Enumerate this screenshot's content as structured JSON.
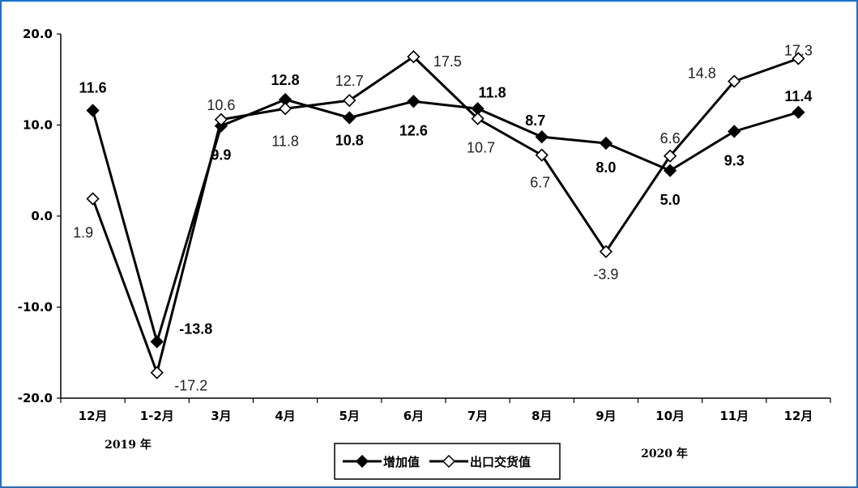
{
  "chart_data": {
    "type": "line",
    "categories": [
      "12月",
      "1-2月",
      "3月",
      "4月",
      "5月",
      "6月",
      "7月",
      "8月",
      "9月",
      "10月",
      "11月",
      "12月"
    ],
    "series": [
      {
        "name": "增加值",
        "values": [
          11.6,
          -13.8,
          9.9,
          12.8,
          10.8,
          12.6,
          11.8,
          8.7,
          8.0,
          5.0,
          9.3,
          11.4
        ],
        "marker": "filled-diamond",
        "color": "#000000"
      },
      {
        "name": "出口交货值",
        "values": [
          1.9,
          -17.2,
          10.6,
          11.8,
          12.7,
          17.5,
          10.7,
          6.7,
          -3.9,
          6.6,
          14.8,
          17.3
        ],
        "marker": "hollow-diamond",
        "color": "#000000"
      }
    ],
    "ylim": [
      -20.0,
      20.0
    ],
    "yticks": [
      "20.0",
      "10.0",
      "0.0",
      "-10.0",
      "-20.0"
    ],
    "year_labels": [
      "2019 年",
      "2020 年"
    ],
    "grid": false,
    "legend_position": "bottom-center"
  }
}
